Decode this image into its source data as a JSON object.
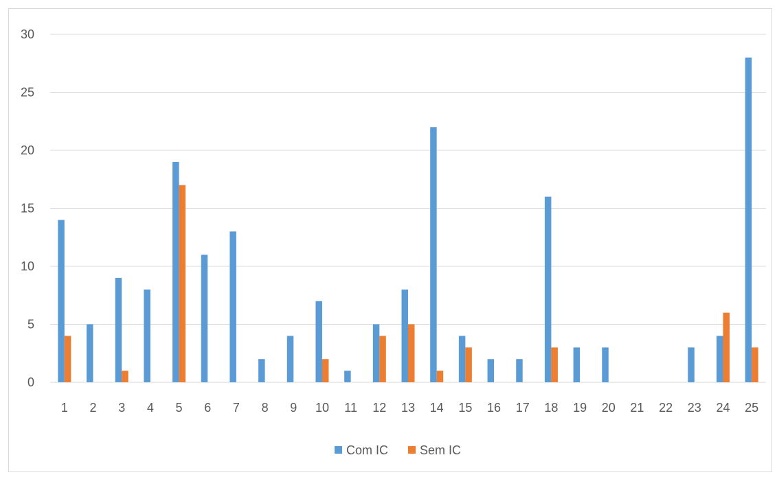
{
  "chart_data": {
    "type": "bar",
    "title": "",
    "xlabel": "",
    "ylabel": "",
    "categories": [
      "1",
      "2",
      "3",
      "4",
      "5",
      "6",
      "7",
      "8",
      "9",
      "10",
      "11",
      "12",
      "13",
      "14",
      "15",
      "16",
      "17",
      "18",
      "19",
      "20",
      "21",
      "22",
      "23",
      "24",
      "25"
    ],
    "series": [
      {
        "name": "Com IC",
        "color": "#5b9bd5",
        "values": [
          14,
          5,
          9,
          8,
          19,
          11,
          13,
          2,
          4,
          7,
          1,
          5,
          8,
          22,
          4,
          2,
          2,
          16,
          3,
          3,
          0,
          0,
          3,
          4,
          28
        ]
      },
      {
        "name": "Sem IC",
        "color": "#ed7d31",
        "values": [
          4,
          0,
          1,
          0,
          17,
          0,
          0,
          0,
          0,
          2,
          0,
          4,
          5,
          1,
          3,
          0,
          0,
          3,
          0,
          0,
          0,
          0,
          0,
          6,
          3
        ]
      }
    ],
    "ylim": [
      0,
      30
    ],
    "yticks": [
      0,
      5,
      10,
      15,
      20,
      25,
      30
    ],
    "grid": true,
    "legend_position": "bottom"
  }
}
